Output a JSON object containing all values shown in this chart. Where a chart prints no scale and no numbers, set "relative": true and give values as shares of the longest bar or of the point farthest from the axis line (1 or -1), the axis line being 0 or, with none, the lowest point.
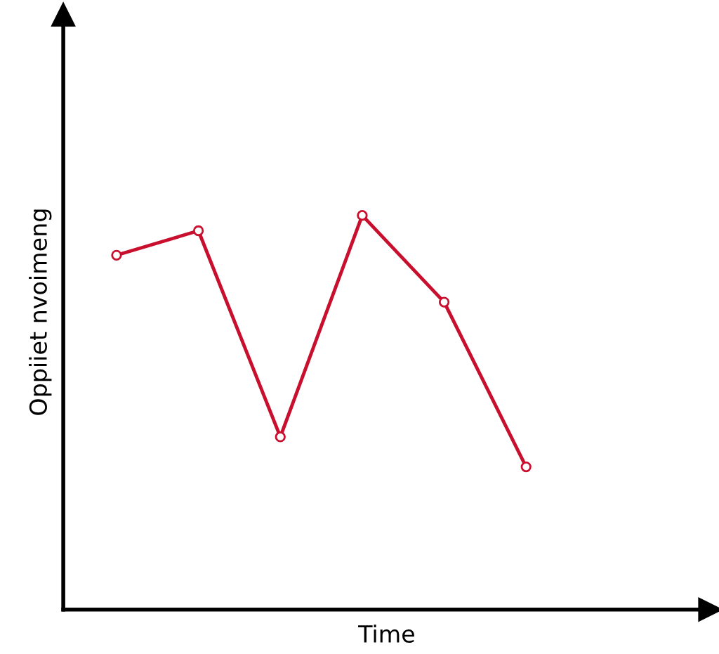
{
  "chart_data": {
    "type": "line",
    "relative": true,
    "xlabel": "Time",
    "ylabel": "Oppiiet nvoimeng",
    "categories": [
      null,
      null,
      null,
      null,
      null,
      null
    ],
    "series": [
      {
        "color": "#c8102e",
        "values": [
          0.899,
          0.961,
          0.438,
          1,
          0.78,
          0.362
        ]
      }
    ],
    "marker": "circle",
    "line_style": "solid",
    "grid": false,
    "legend": false
  }
}
